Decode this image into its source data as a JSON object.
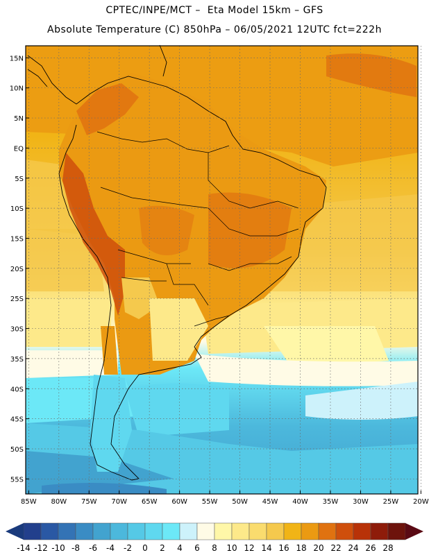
{
  "header": {
    "line1": "CPTEC/INPE/MCT –  Eta Model 15km – GFS",
    "line2": "Absolute Temperature (C) 850hPa – 06/05/2021 12UTC fct=222h"
  },
  "map": {
    "lat_ticks": [
      "15N",
      "10N",
      "5N",
      "EQ",
      "5S",
      "10S",
      "15S",
      "20S",
      "25S",
      "30S",
      "35S",
      "40S",
      "45S",
      "50S",
      "55S"
    ],
    "lon_ticks": [
      "85W",
      "80W",
      "75W",
      "70W",
      "65W",
      "60W",
      "55W",
      "50W",
      "45W",
      "40W",
      "35W",
      "30W",
      "25W",
      "20W"
    ],
    "lat_range": [
      17,
      -57.5
    ],
    "lon_range": [
      -85.5,
      -20.5
    ],
    "gridlines": "dotted"
  },
  "colorbar": {
    "labels": [
      "-14",
      "-12",
      "-10",
      "-8",
      "-6",
      "-4",
      "-2",
      "0",
      "2",
      "4",
      "6",
      "8",
      "10",
      "12",
      "14",
      "16",
      "18",
      "20",
      "22",
      "24",
      "26",
      "28"
    ],
    "low_color": "#1a3a7c",
    "high_color": "#5a0a14",
    "colors": [
      "#223f8c",
      "#2a58a4",
      "#3373b5",
      "#3a8cc4",
      "#42a3cf",
      "#4cb8dc",
      "#55c9e6",
      "#5fd8ef",
      "#6ce8f7",
      "#cdf2fb",
      "#fffbe6",
      "#fff7a8",
      "#fde98a",
      "#fadc6e",
      "#f5c94d",
      "#f1b416",
      "#eb9a12",
      "#e07210",
      "#cf4f0c",
      "#b83208",
      "#8e1c0a",
      "#6d130c"
    ]
  }
}
